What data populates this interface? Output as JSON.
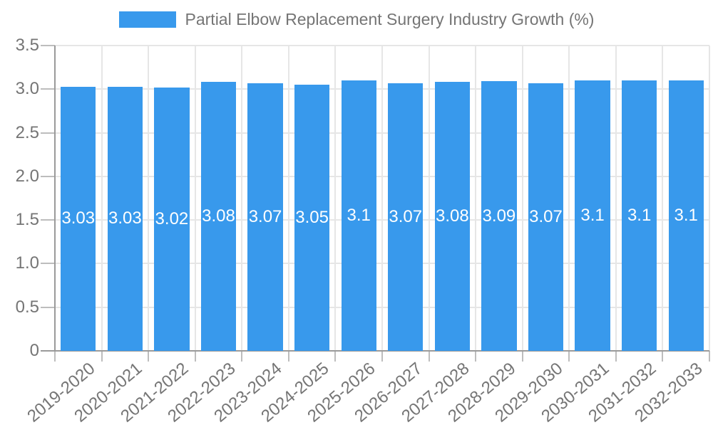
{
  "legend": {
    "series_label": "Partial Elbow Replacement Surgery Industry Growth (%)",
    "swatch_color": "#3899EC"
  },
  "chart_data": {
    "type": "bar",
    "title": "Partial Elbow Replacement Surgery Industry Growth (%)",
    "categories": [
      "2019-2020",
      "2020-2021",
      "2021-2022",
      "2022-2023",
      "2023-2024",
      "2024-2025",
      "2025-2026",
      "2026-2027",
      "2027-2028",
      "2028-2029",
      "2029-2030",
      "2030-2031",
      "2031-2032",
      "2032-2033"
    ],
    "values": [
      3.03,
      3.03,
      3.02,
      3.08,
      3.07,
      3.05,
      3.1,
      3.07,
      3.08,
      3.09,
      3.07,
      3.1,
      3.1,
      3.1
    ],
    "bar_labels": [
      "3.03",
      "3.03",
      "3.02",
      "3.08",
      "3.07",
      "3.05",
      "3.1",
      "3.07",
      "3.08",
      "3.09",
      "3.07",
      "3.1",
      "3.1",
      "3.1"
    ],
    "xlabel": "",
    "ylabel": "",
    "ylim": [
      0,
      3.5
    ],
    "yticks": [
      0,
      0.5,
      1.0,
      1.5,
      2.0,
      2.5,
      3.0,
      3.5
    ],
    "ytick_labels": [
      "0",
      "0.5",
      "1.0",
      "1.5",
      "2.0",
      "2.5",
      "3.0",
      "3.5"
    ],
    "grid": true,
    "legend_position": "top",
    "bar_color": "#3899EC",
    "bar_label_color": "#ffffff",
    "axis_text_color": "#757575"
  },
  "colors": {
    "bar": "#3899EC",
    "axis_line": "#9a9a9a",
    "tick": "#bdbdbd",
    "gridline": "#e6e6e6",
    "text": "#757575",
    "bar_label": "#ffffff",
    "background": "#ffffff"
  }
}
